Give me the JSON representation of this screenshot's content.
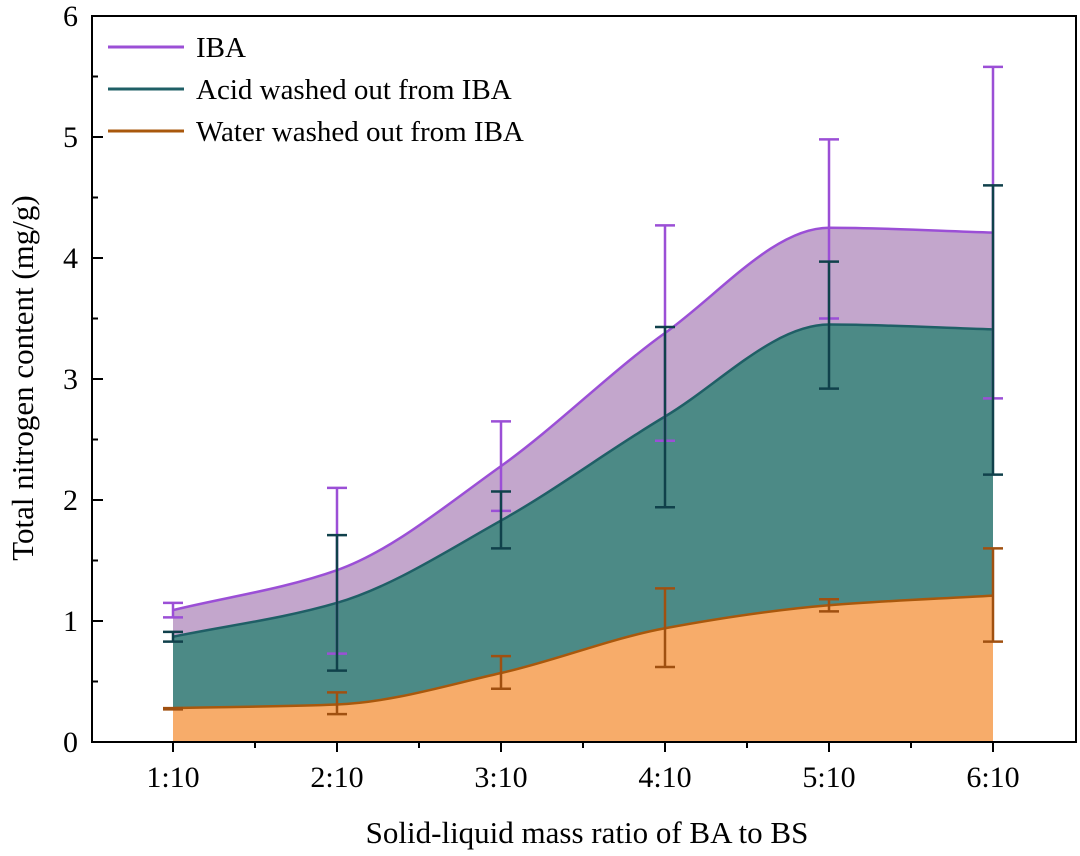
{
  "chart_data": {
    "type": "area",
    "categories": [
      "1:10",
      "2:10",
      "3:10",
      "4:10",
      "5:10",
      "6:10"
    ],
    "xlabel": "Solid-liquid mass ratio of BA to BS",
    "ylabel": "Total nitrogen content (mg/g)",
    "ylim": [
      0,
      6
    ],
    "yticks": [
      "0",
      "1",
      "2",
      "3",
      "4",
      "5",
      "6"
    ],
    "legend_position": "top-left",
    "series": [
      {
        "key": "iba",
        "name": "IBA",
        "line_color": "#9b4fd6",
        "fill_color": "#c3a6cc",
        "values": [
          1.09,
          1.42,
          2.28,
          3.38,
          4.25,
          4.21
        ],
        "error_low": [
          1.03,
          0.73,
          1.91,
          2.49,
          3.5,
          2.84
        ],
        "error_high": [
          1.15,
          2.1,
          2.65,
          4.27,
          4.98,
          5.58
        ]
      },
      {
        "key": "acid",
        "name": "Acid washed out from IBA",
        "line_color": "#1f5f66",
        "fill_color": "#4c8a86",
        "error_color": "#10414b",
        "values": [
          0.87,
          1.15,
          1.83,
          2.69,
          3.45,
          3.41
        ],
        "error_low": [
          0.83,
          0.59,
          1.6,
          1.94,
          2.92,
          2.21
        ],
        "error_high": [
          0.91,
          1.71,
          2.07,
          3.43,
          3.97,
          4.6
        ]
      },
      {
        "key": "water",
        "name": "Water washed out from IBA",
        "line_color": "#a9580c",
        "fill_color": "#f7ac6a",
        "error_color": "#a05010",
        "values": [
          0.28,
          0.31,
          0.57,
          0.94,
          1.13,
          1.21
        ],
        "error_low": [
          0.27,
          0.23,
          0.44,
          0.62,
          1.08,
          0.83
        ],
        "error_high": [
          0.28,
          0.41,
          0.71,
          1.27,
          1.18,
          1.6
        ]
      }
    ]
  }
}
